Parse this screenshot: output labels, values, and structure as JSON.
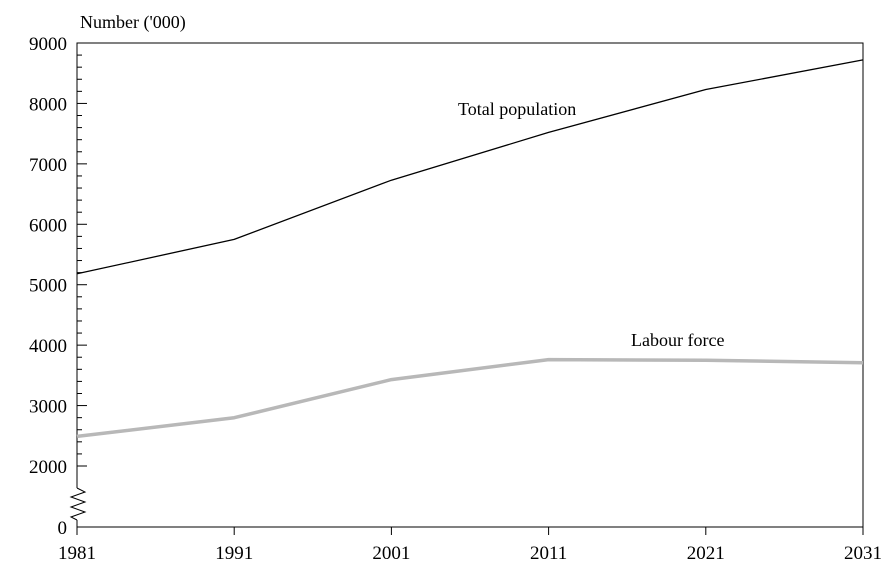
{
  "chart_data": {
    "type": "line",
    "ylabel": "Number ('000)",
    "xlabel": "",
    "x": [
      1981,
      1991,
      2001,
      2011,
      2021,
      2031
    ],
    "x_tick_labels": [
      "1981",
      "1991",
      "2001",
      "2011",
      "2021",
      "2031"
    ],
    "y_tick_labels": [
      "0",
      "2000",
      "3000",
      "4000",
      "5000",
      "6000",
      "7000",
      "8000",
      "9000"
    ],
    "y_ticks": [
      0,
      2000,
      3000,
      4000,
      5000,
      6000,
      7000,
      8000,
      9000
    ],
    "ylim": [
      0,
      9000
    ],
    "y_axis_break": "between 0 and 2000",
    "grid": false,
    "series": [
      {
        "name": "Total population",
        "values": [
          5180,
          5750,
          6730,
          7520,
          8230,
          8720
        ],
        "color": "#000000"
      },
      {
        "name": "Labour force",
        "values": [
          2490,
          2800,
          3430,
          3760,
          3750,
          3710
        ],
        "color": "#b8b8b8"
      }
    ]
  }
}
